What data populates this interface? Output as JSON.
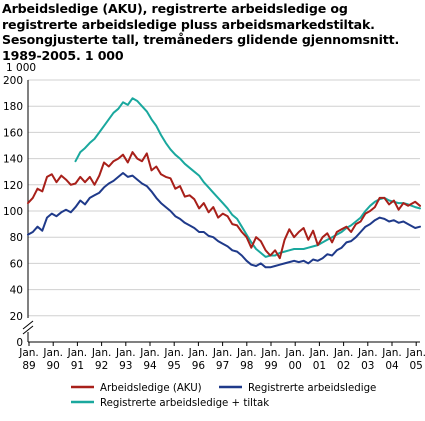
{
  "chart_data": {
    "type": "line",
    "title": "Arbeidsledige (AKU), registrerte arbeidsledige og registrerte arbeidsledige pluss arbeidsmarkedstiltak. Sesongjusterte tall, tremåneders glidende gjennomsnitt. 1989-2005. 1 000",
    "ylabel": "1 000",
    "xlabel": "",
    "ylim": [
      0,
      200
    ],
    "yticks": [
      0,
      20,
      40,
      60,
      80,
      100,
      120,
      140,
      160,
      180,
      200
    ],
    "ytick_labels": [
      "0",
      "20",
      "40",
      "60",
      "80",
      "100",
      "120",
      "140",
      "160",
      "180",
      "200"
    ],
    "xlim": [
      1989,
      2005.5
    ],
    "xtick_labels": [
      {
        "top": "Jan.",
        "bottom": "89"
      },
      {
        "top": "Jan.",
        "bottom": "90"
      },
      {
        "top": "Jan.",
        "bottom": "91"
      },
      {
        "top": "Jan.",
        "bottom": "92"
      },
      {
        "top": "Jan.",
        "bottom": "93"
      },
      {
        "top": "Jan.",
        "bottom": "94"
      },
      {
        "top": "Jan.",
        "bottom": "95"
      },
      {
        "top": "Jan.",
        "bottom": "96"
      },
      {
        "top": "Jan.",
        "bottom": "97"
      },
      {
        "top": "Jan.",
        "bottom": "98"
      },
      {
        "top": "Jan.",
        "bottom": "99"
      },
      {
        "top": "Jan.",
        "bottom": "00"
      },
      {
        "top": "Jan.",
        "bottom": "01"
      },
      {
        "top": "Jan.",
        "bottom": "02"
      },
      {
        "top": "Jan.",
        "bottom": "03"
      },
      {
        "top": "Jan.",
        "bottom": "04"
      },
      {
        "top": "Jan.",
        "bottom": "05"
      }
    ],
    "grid": "horizontal",
    "legend_position": "bottom",
    "axis_break": true,
    "series": [
      {
        "name": "Arbeidsledige (AKU)",
        "color": "#a8201a",
        "x": [
          1989.0,
          1989.2,
          1989.4,
          1989.6,
          1989.8,
          1990.0,
          1990.2,
          1990.4,
          1990.6,
          1990.8,
          1991.0,
          1991.2,
          1991.4,
          1991.6,
          1991.8,
          1992.0,
          1992.2,
          1992.4,
          1992.6,
          1992.8,
          1993.0,
          1993.2,
          1993.4,
          1993.6,
          1993.8,
          1994.0,
          1994.2,
          1994.4,
          1994.6,
          1994.8,
          1995.0,
          1995.2,
          1995.4,
          1995.6,
          1995.8,
          1996.0,
          1996.2,
          1996.4,
          1996.6,
          1996.8,
          1997.0,
          1997.2,
          1997.4,
          1997.6,
          1997.8,
          1998.0,
          1998.2,
          1998.4,
          1998.6,
          1998.8,
          1999.0,
          1999.2,
          1999.4,
          1999.6,
          1999.8,
          2000.0,
          2000.2,
          2000.4,
          2000.6,
          2000.8,
          2001.0,
          2001.2,
          2001.4,
          2001.6,
          2001.8,
          2002.0,
          2002.2,
          2002.4,
          2002.6,
          2002.8,
          2003.0,
          2003.2,
          2003.4,
          2003.6,
          2003.8,
          2004.0,
          2004.2,
          2004.4,
          2004.6,
          2004.8,
          2005.0,
          2005.3,
          2005.5
        ],
        "values": [
          106,
          110,
          117,
          115,
          126,
          128,
          122,
          127,
          124,
          120,
          121,
          126,
          122,
          126,
          120,
          127,
          137,
          134,
          138,
          140,
          143,
          137,
          145,
          140,
          138,
          144,
          131,
          134,
          128,
          126,
          125,
          117,
          119,
          111,
          112,
          109,
          102,
          106,
          99,
          103,
          95,
          98,
          96,
          90,
          89,
          84,
          80,
          72,
          80,
          77,
          70,
          66,
          70,
          64,
          78,
          86,
          80,
          84,
          87,
          78,
          85,
          74,
          80,
          83,
          76,
          84,
          86,
          88,
          84,
          90,
          92,
          98,
          100,
          103,
          110,
          110,
          105,
          108,
          101,
          106,
          104,
          107,
          104
        ]
      },
      {
        "name": "Registrerte arbeidsledige",
        "color": "#1f3a8a",
        "x": [
          1989.0,
          1989.2,
          1989.4,
          1989.6,
          1989.8,
          1990.0,
          1990.2,
          1990.4,
          1990.6,
          1990.8,
          1991.0,
          1991.2,
          1991.4,
          1991.6,
          1991.8,
          1992.0,
          1992.2,
          1992.4,
          1992.6,
          1992.8,
          1993.0,
          1993.2,
          1993.4,
          1993.6,
          1993.8,
          1994.0,
          1994.2,
          1994.4,
          1994.6,
          1994.8,
          1995.0,
          1995.2,
          1995.4,
          1995.6,
          1995.8,
          1996.0,
          1996.2,
          1996.4,
          1996.6,
          1996.8,
          1997.0,
          1997.2,
          1997.4,
          1997.6,
          1997.8,
          1998.0,
          1998.2,
          1998.4,
          1998.6,
          1998.8,
          1999.0,
          1999.2,
          1999.4,
          1999.6,
          1999.8,
          2000.0,
          2000.2,
          2000.4,
          2000.6,
          2000.8,
          2001.0,
          2001.2,
          2001.4,
          2001.6,
          2001.8,
          2002.0,
          2002.2,
          2002.4,
          2002.6,
          2002.8,
          2003.0,
          2003.2,
          2003.4,
          2003.6,
          2003.8,
          2004.0,
          2004.2,
          2004.4,
          2004.6,
          2004.8,
          2005.0,
          2005.3,
          2005.5
        ],
        "values": [
          82,
          84,
          88,
          85,
          95,
          98,
          96,
          99,
          101,
          99,
          103,
          108,
          105,
          110,
          112,
          114,
          118,
          121,
          123,
          126,
          129,
          126,
          127,
          124,
          121,
          119,
          115,
          110,
          106,
          103,
          100,
          96,
          94,
          91,
          89,
          87,
          84,
          84,
          81,
          80,
          77,
          75,
          73,
          70,
          69,
          66,
          62,
          59,
          58,
          60,
          57,
          57,
          58,
          59,
          60,
          61,
          62,
          61,
          62,
          60,
          63,
          62,
          64,
          67,
          66,
          70,
          72,
          76,
          77,
          80,
          84,
          88,
          90,
          93,
          95,
          94,
          92,
          93,
          91,
          92,
          90,
          87,
          88
        ]
      },
      {
        "name": "Registrerte arbeidsledige + tiltak",
        "color": "#1aa89e",
        "x": [
          1991.0,
          1991.2,
          1991.4,
          1991.6,
          1991.8,
          1992.0,
          1992.2,
          1992.4,
          1992.6,
          1992.8,
          1993.0,
          1993.2,
          1993.4,
          1993.6,
          1993.8,
          1994.0,
          1994.2,
          1994.4,
          1994.6,
          1994.8,
          1995.0,
          1995.2,
          1995.4,
          1995.6,
          1995.8,
          1996.0,
          1996.2,
          1996.4,
          1996.6,
          1996.8,
          1997.0,
          1997.2,
          1997.4,
          1997.6,
          1997.8,
          1998.0,
          1998.2,
          1998.4,
          1998.6,
          1998.8,
          1999.0,
          1999.2,
          1999.4,
          1999.6,
          1999.8,
          2000.0,
          2000.2,
          2000.4,
          2000.6,
          2000.8,
          2001.0,
          2001.2,
          2001.4,
          2001.6,
          2001.8,
          2002.0,
          2002.2,
          2002.4,
          2002.6,
          2002.8,
          2003.0,
          2003.2,
          2003.4,
          2003.6,
          2003.8,
          2004.0,
          2004.2,
          2004.4,
          2004.6,
          2004.8,
          2005.0,
          2005.3,
          2005.5
        ],
        "values": [
          138,
          145,
          148,
          152,
          155,
          160,
          165,
          170,
          175,
          178,
          183,
          181,
          186,
          184,
          180,
          176,
          170,
          165,
          158,
          152,
          147,
          143,
          140,
          136,
          133,
          130,
          127,
          122,
          118,
          114,
          110,
          106,
          102,
          97,
          94,
          88,
          82,
          76,
          71,
          68,
          65,
          66,
          66,
          68,
          69,
          70,
          71,
          71,
          71,
          72,
          73,
          74,
          76,
          78,
          80,
          82,
          84,
          87,
          89,
          92,
          95,
          100,
          104,
          107,
          109,
          110,
          108,
          107,
          106,
          106,
          105,
          103,
          102
        ]
      }
    ]
  }
}
